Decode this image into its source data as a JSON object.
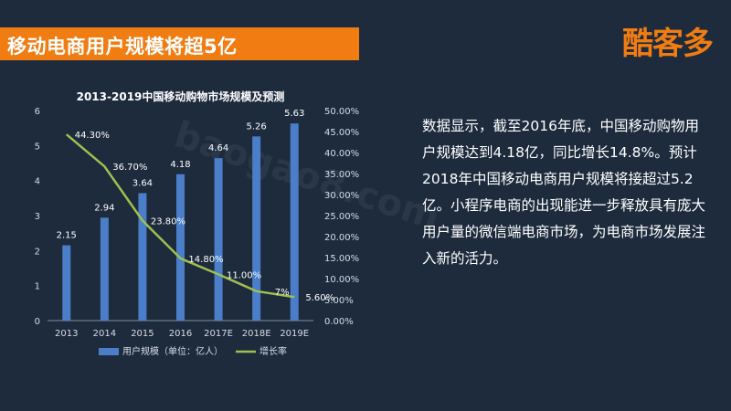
{
  "header": {
    "title": "移动电商用户规模将超5亿",
    "logo_text": "酷客多"
  },
  "colors": {
    "background": "#1d2b3d",
    "accent": "#f07c12",
    "bar": "#4a7ec9",
    "line": "#9fbf50",
    "text": "#ffffff",
    "axis_text": "#d7dde6"
  },
  "watermark": "baogao8.com",
  "chart_data": {
    "type": "bar",
    "title": "2013-2019中国移动购物市场规模及预测",
    "categories": [
      "2013",
      "2014",
      "2015",
      "2016",
      "2017E",
      "2018E",
      "2019E"
    ],
    "series": [
      {
        "name": "用户规模（单位：亿人）",
        "type": "bar",
        "axis": "left",
        "values": [
          2.15,
          2.94,
          3.64,
          4.18,
          4.64,
          5.26,
          5.63
        ],
        "labels": [
          "2.15",
          "2.94",
          "3.64",
          "4.18",
          "4.64",
          "5.26",
          "5.63"
        ]
      },
      {
        "name": "增长率",
        "type": "line",
        "axis": "right",
        "values": [
          44.3,
          36.7,
          23.8,
          14.8,
          11.0,
          7.0,
          5.6
        ],
        "labels": [
          "44.30%",
          "36.70%",
          "23.80%",
          "14.80%",
          "11.00%",
          "7%",
          "5.60%"
        ]
      }
    ],
    "y_left": {
      "min": 0,
      "max": 6,
      "ticks": [
        "0",
        "1",
        "2",
        "3",
        "4",
        "5",
        "6"
      ]
    },
    "y_right": {
      "min": 0,
      "max": 50,
      "ticks": [
        "0.00%",
        "5.00%",
        "10.00%",
        "15.00%",
        "20.00%",
        "25.00%",
        "30.00%",
        "35.00%",
        "40.00%",
        "45.00%",
        "50.00%"
      ]
    },
    "legend_position": "bottom"
  },
  "description": "数据显示，截至2016年底，中国移动购物用户规模达到4.18亿，同比增长14.8%。预计2018年中国移动电商用户规模将接超过5.2亿。小程序电商的出现能进一步释放具有庞大用户量的微信端电商市场，为电商市场发展注入新的活力。"
}
